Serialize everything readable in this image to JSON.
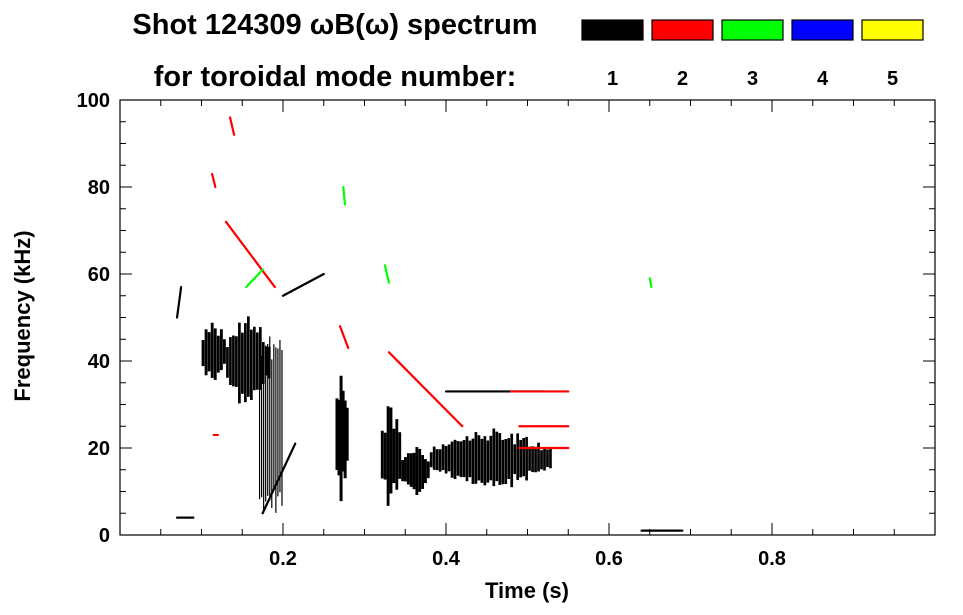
{
  "chart_data": {
    "type": "heatmap",
    "title_line1": "Shot 124309 ωB(ω) spectrum",
    "title_line2": "for toroidal mode number:",
    "xlabel": "Time (s)",
    "ylabel": "Frequency (kHz)",
    "xlim": [
      0.0,
      1.0
    ],
    "ylim": [
      0,
      100
    ],
    "x_ticks": [
      0.2,
      0.4,
      0.6,
      0.8
    ],
    "x_tick_labels": [
      "0.2",
      "0.4",
      "0.6",
      "0.8"
    ],
    "y_ticks": [
      0,
      20,
      40,
      60,
      80,
      100
    ],
    "y_tick_labels": [
      "0",
      "20",
      "40",
      "60",
      "80",
      "100"
    ],
    "legend": [
      {
        "mode": "1",
        "color": "#000000"
      },
      {
        "mode": "2",
        "color": "#ff0000"
      },
      {
        "mode": "3",
        "color": "#00ff00"
      },
      {
        "mode": "4",
        "color": "#0000ff"
      },
      {
        "mode": "5",
        "color": "#ffff00"
      }
    ],
    "series": [
      {
        "name": "n=1",
        "color": "#000000",
        "features": [
          {
            "kind": "blob",
            "t": [
              0.1,
              0.13
            ],
            "f": [
              34,
              50
            ],
            "density": 0.55
          },
          {
            "kind": "blob",
            "t": [
              0.13,
              0.185
            ],
            "f": [
              28,
              52
            ],
            "density": 0.5
          },
          {
            "kind": "vlines",
            "t": [
              0.17,
              0.2
            ],
            "f": [
              5,
              48
            ],
            "count": 12
          },
          {
            "kind": "line",
            "t": [
              0.2,
              0.25
            ],
            "f": [
              55,
              60
            ]
          },
          {
            "kind": "line",
            "t": [
              0.175,
              0.215
            ],
            "f": [
              5,
              21
            ]
          },
          {
            "kind": "blob",
            "t": [
              0.265,
              0.28
            ],
            "f": [
              5,
              40
            ],
            "density": 0.6
          },
          {
            "kind": "blob",
            "t": [
              0.32,
              0.345
            ],
            "f": [
              5,
              32
            ],
            "density": 0.55
          },
          {
            "kind": "blob",
            "t": [
              0.345,
              0.38
            ],
            "f": [
              8,
              22
            ],
            "density": 0.55
          },
          {
            "kind": "blob",
            "t": [
              0.38,
              0.53
            ],
            "f": [
              10,
              25
            ],
            "density": 0.5
          },
          {
            "kind": "line",
            "t": [
              0.4,
              0.52
            ],
            "f": [
              33,
              33
            ]
          },
          {
            "kind": "line",
            "t": [
              0.64,
              0.69
            ],
            "f": [
              1,
              1
            ]
          },
          {
            "kind": "line",
            "t": [
              0.07,
              0.09
            ],
            "f": [
              4,
              4
            ]
          },
          {
            "kind": "line",
            "t": [
              0.07,
              0.075
            ],
            "f": [
              50,
              57
            ]
          }
        ]
      },
      {
        "name": "n=2",
        "color": "#ff0000",
        "features": [
          {
            "kind": "line",
            "t": [
              0.13,
              0.19
            ],
            "f": [
              72,
              57
            ]
          },
          {
            "kind": "line",
            "t": [
              0.33,
              0.42
            ],
            "f": [
              42,
              25
            ]
          },
          {
            "kind": "line",
            "t": [
              0.48,
              0.55
            ],
            "f": [
              33,
              33
            ]
          },
          {
            "kind": "line",
            "t": [
              0.49,
              0.55
            ],
            "f": [
              25,
              25
            ]
          },
          {
            "kind": "line",
            "t": [
              0.49,
              0.55
            ],
            "f": [
              20,
              20
            ]
          },
          {
            "kind": "line",
            "t": [
              0.27,
              0.28
            ],
            "f": [
              48,
              43
            ]
          },
          {
            "kind": "line",
            "t": [
              0.115,
              0.12
            ],
            "f": [
              23,
              23
            ]
          },
          {
            "kind": "line",
            "t": [
              0.135,
              0.14
            ],
            "f": [
              96,
              92
            ]
          },
          {
            "kind": "line",
            "t": [
              0.113,
              0.117
            ],
            "f": [
              83,
              80
            ]
          }
        ]
      },
      {
        "name": "n=3",
        "color": "#00ff00",
        "features": [
          {
            "kind": "line",
            "t": [
              0.155,
              0.175
            ],
            "f": [
              57,
              61
            ]
          },
          {
            "kind": "line",
            "t": [
              0.325,
              0.33
            ],
            "f": [
              62,
              58
            ]
          },
          {
            "kind": "line",
            "t": [
              0.65,
              0.652
            ],
            "f": [
              59,
              57
            ]
          },
          {
            "kind": "line",
            "t": [
              0.274,
              0.276
            ],
            "f": [
              80,
              76
            ]
          }
        ]
      },
      {
        "name": "n=4",
        "color": "#0000ff",
        "features": []
      },
      {
        "name": "n=5",
        "color": "#ffff00",
        "features": []
      }
    ]
  }
}
